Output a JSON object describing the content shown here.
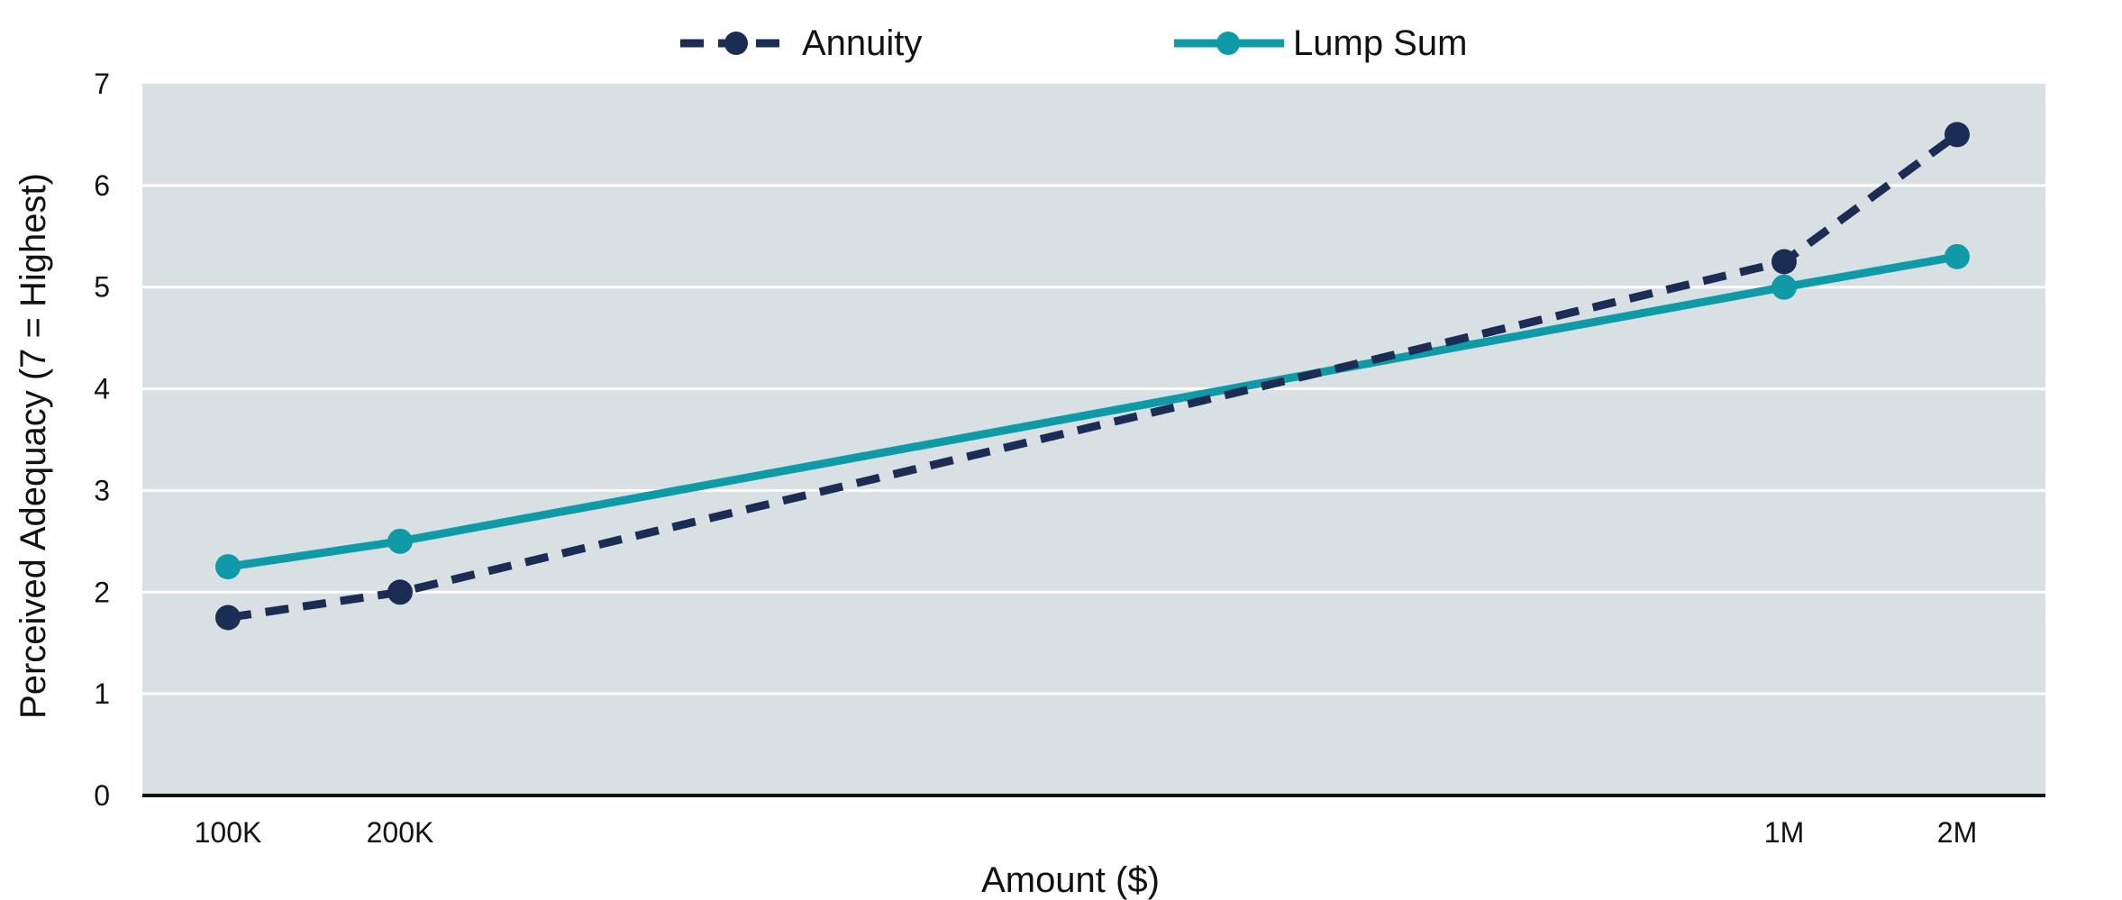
{
  "chart_data": {
    "type": "line",
    "categories": [
      "100K",
      "200K",
      "1M",
      "2M"
    ],
    "xlabel": "Amount ($)",
    "ylabel": "Perceived Adequacy (7 = Highest)",
    "ylim": [
      0,
      7
    ],
    "yticks": [
      "0",
      "1",
      "2",
      "3",
      "4",
      "5",
      "6",
      "7"
    ],
    "grid": true,
    "legend_position": "top",
    "plot_background": "#d9e0e3",
    "series": [
      {
        "name": "Annuity",
        "values": [
          1.75,
          2.0,
          5.25,
          6.5
        ],
        "color": "#1c2d55",
        "style": "dashed"
      },
      {
        "name": "Lump Sum",
        "values": [
          2.25,
          2.5,
          5.0,
          5.3
        ],
        "color": "#0e9aa7",
        "style": "solid"
      }
    ]
  }
}
